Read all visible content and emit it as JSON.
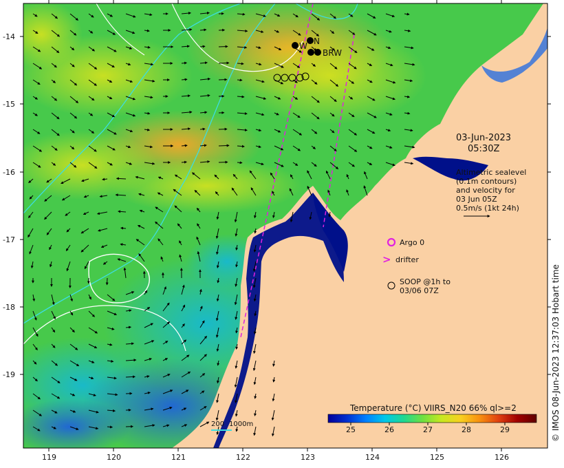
{
  "map": {
    "lon_ticks": [
      "119",
      "120",
      "121",
      "122",
      "123",
      "124",
      "125",
      "126"
    ],
    "lat_ticks": [
      "-14",
      "-15",
      "-16",
      "-17",
      "-18",
      "-19"
    ],
    "lon_range": [
      118.6,
      126.7
    ],
    "lat_range": [
      -13.5,
      -19.9
    ],
    "colors": {
      "land": "#fad0a4",
      "shallow": "#00108a",
      "sst_warm": "#f1b12b",
      "sst_mid": "#48d24a",
      "sst_cool": "#19b5d4",
      "contour": "#ffffff",
      "bathy": "#3ddde0",
      "track": "#e020e0"
    }
  },
  "stations": {
    "w_label": "W",
    "n_label": "N",
    "brw_label": "BRW"
  },
  "annotation": {
    "date": "03-Jun-2023",
    "time": "05:30Z",
    "alt_lines": [
      "Altimetric sealevel",
      "(0.1m contours)",
      "and velocity for",
      "03 Jun 05Z",
      "0.5m/s (1kt 24h)"
    ]
  },
  "legend": {
    "argo": "Argo 0",
    "drifter": "drifter",
    "soop_line1": "SOOP @1h to",
    "soop_line2": "03/06 07Z"
  },
  "scale": {
    "a": "200",
    "b": "1000m"
  },
  "colorbar": {
    "title": "Temperature (°C) VIIRS_N20 66% ql>=2",
    "ticks": [
      "25",
      "26",
      "27",
      "28",
      "29"
    ],
    "stops": [
      "#00009a",
      "#0030d0",
      "#0080ff",
      "#00c8e8",
      "#20d890",
      "#70e040",
      "#c8e820",
      "#f8d020",
      "#f89010",
      "#e04010",
      "#a00000",
      "#600000"
    ]
  },
  "credit": "© IMOS 08-Jun-2023 12:37:03 Hobart time"
}
